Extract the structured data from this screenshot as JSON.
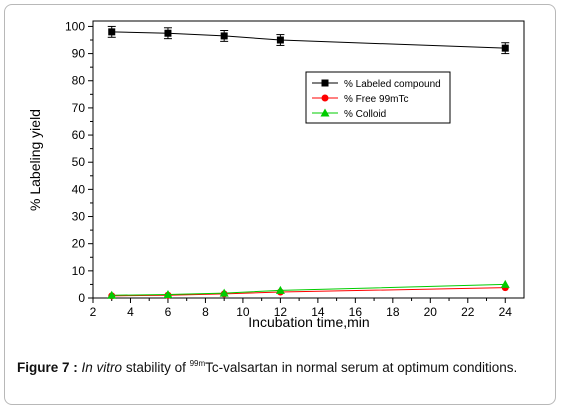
{
  "chart_data": {
    "type": "line",
    "xlabel": "Incubation time,min",
    "ylabel": "% Labeling yield",
    "xlim": [
      2,
      25
    ],
    "ylim": [
      0,
      102
    ],
    "xticks": [
      2,
      4,
      6,
      8,
      10,
      12,
      14,
      16,
      18,
      20,
      22,
      24
    ],
    "yticks": [
      0,
      10,
      20,
      30,
      40,
      50,
      60,
      70,
      80,
      90,
      100
    ],
    "grid": false,
    "legend_position": "upper-right",
    "series": [
      {
        "name": "% Labeled compound",
        "marker": "square",
        "color": "#000000",
        "x": [
          3,
          6,
          9,
          12,
          24
        ],
        "y": [
          98,
          97.5,
          96.5,
          95,
          92
        ],
        "error": [
          2,
          2,
          2,
          2,
          2
        ]
      },
      {
        "name": "% Free 99mTc",
        "marker": "circle",
        "color": "#ff0000",
        "x": [
          3,
          6,
          9,
          12,
          24
        ],
        "y": [
          0.8,
          1,
          1.5,
          2.2,
          3.8
        ]
      },
      {
        "name": "% Colloid",
        "marker": "triangle",
        "color": "#00cc00",
        "x": [
          3,
          6,
          9,
          12,
          24
        ],
        "y": [
          1,
          1.3,
          1.8,
          2.8,
          5
        ]
      }
    ]
  },
  "caption": {
    "label": "Figure 7 :",
    "italic": "In vitro",
    "text1": "stability of",
    "superscript": "99m",
    "text2": "Tc-valsartan in normal serum at optimum conditions."
  }
}
